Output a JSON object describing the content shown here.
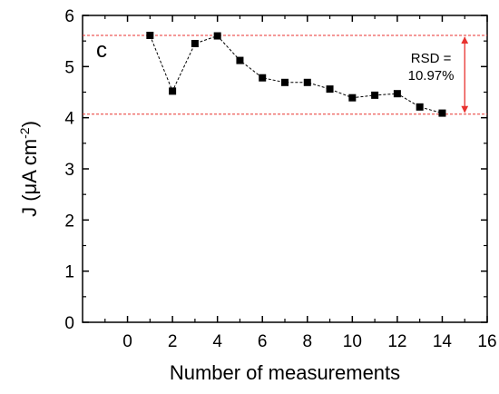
{
  "chart_data": {
    "type": "line",
    "title": "",
    "panel_label": "c",
    "xlabel": "Number of measurements",
    "ylabel": {
      "prefix": "J (",
      "mu": "μ",
      "unit": "A cm",
      "exponent": "-2",
      "suffix": ")"
    },
    "xlim": [
      -2,
      16
    ],
    "ylim": [
      0,
      6
    ],
    "xticks": [
      0,
      2,
      4,
      6,
      8,
      10,
      12,
      14,
      16
    ],
    "yticks": [
      0,
      1,
      2,
      3,
      4,
      5,
      6
    ],
    "grid": false,
    "legend": "none",
    "series": [
      {
        "x": [
          1,
          2,
          3,
          4,
          5,
          6,
          7,
          8,
          9,
          10,
          11,
          12,
          13,
          14
        ],
        "values": [
          5.61,
          4.52,
          5.45,
          5.6,
          5.12,
          4.78,
          4.69,
          4.69,
          4.56,
          4.39,
          4.44,
          4.47,
          4.21,
          4.09
        ],
        "marker": "square",
        "line": "dashed",
        "color": "#000000"
      }
    ],
    "reference_lines": [
      {
        "axis": "y",
        "value": 5.61,
        "color": "#e8322f",
        "style": "dashed"
      },
      {
        "axis": "y",
        "value": 4.07,
        "color": "#e8322f",
        "style": "dashed"
      }
    ],
    "annotation": {
      "lines": [
        "RSD =",
        "10.97%"
      ],
      "arrow": {
        "x": 15,
        "from": 5.61,
        "to": 4.07,
        "color": "#e8322f"
      }
    }
  }
}
